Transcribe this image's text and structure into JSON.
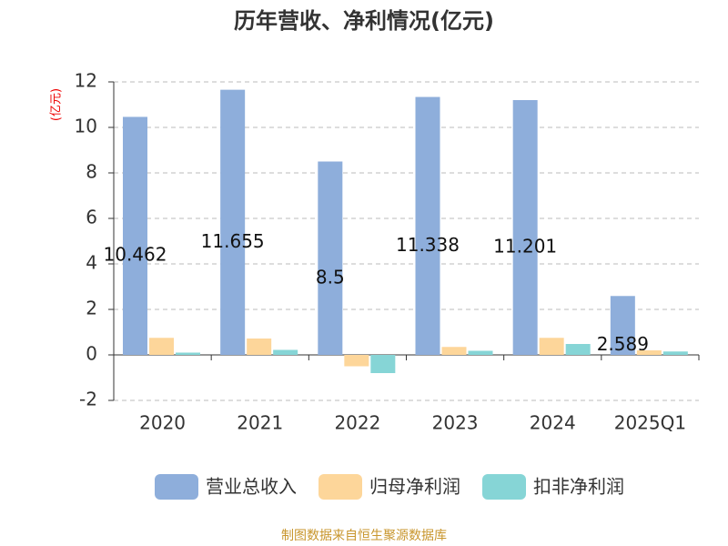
{
  "chart_data": {
    "type": "bar",
    "title": "历年营收、净利情况(亿元)",
    "y_unit": "(亿元)",
    "categories": [
      "2020",
      "2021",
      "2022",
      "2023",
      "2024",
      "2025Q1"
    ],
    "series": [
      {
        "name": "营业总收入",
        "color": "#8eaedb",
        "values": [
          10.462,
          11.655,
          8.5,
          11.338,
          11.201,
          2.589
        ]
      },
      {
        "name": "归母净利润",
        "color": "#fdd69a",
        "values": [
          0.75,
          0.72,
          -0.5,
          0.35,
          0.75,
          0.2
        ]
      },
      {
        "name": "扣非净利润",
        "color": "#86d5d6",
        "values": [
          0.1,
          0.22,
          -0.8,
          0.18,
          0.48,
          0.15
        ]
      }
    ],
    "ylim": [
      -2,
      12
    ],
    "yticks": [
      -2,
      0,
      2,
      4,
      6,
      8,
      10,
      12
    ],
    "grid": true,
    "source": "制图数据来自恒生聚源数据库"
  }
}
